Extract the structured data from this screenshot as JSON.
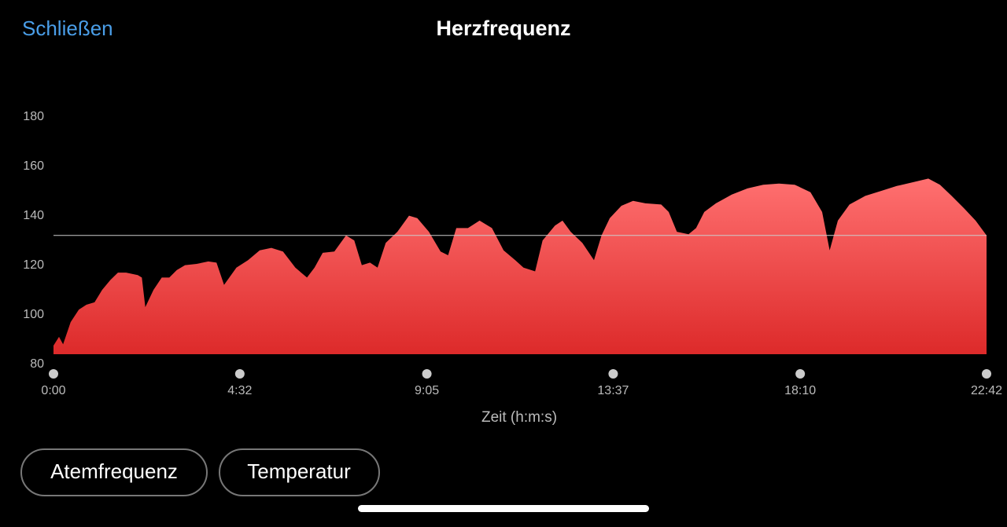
{
  "header": {
    "close": "Schließen",
    "title": "Herzfrequenz"
  },
  "chart_data": {
    "type": "area",
    "x_label": "Zeit (h:m:s)",
    "x": [
      0,
      8,
      14,
      25,
      37,
      48,
      60,
      71,
      83,
      94,
      106,
      123,
      129,
      134,
      146,
      158,
      169,
      180,
      192,
      209,
      226,
      238,
      249,
      267,
      284,
      301,
      318,
      335,
      353,
      370,
      381,
      393,
      410,
      427,
      439,
      450,
      462,
      473,
      485,
      502,
      519,
      531,
      548,
      565,
      576,
      588,
      605,
      622,
      640,
      657,
      674,
      686,
      703,
      714,
      732,
      743,
      755,
      772,
      789,
      800,
      812,
      829,
      846,
      864,
      887,
      898,
      910,
      927,
      938,
      950,
      967,
      990,
      1013,
      1036,
      1059,
      1082,
      1105,
      1122,
      1133,
      1145,
      1162,
      1185,
      1208,
      1231,
      1254,
      1277,
      1294,
      1311,
      1329,
      1346,
      1362
    ],
    "values": [
      83.5,
      87,
      84,
      93,
      98,
      100,
      101,
      106,
      110,
      113,
      113,
      112,
      111,
      99,
      106,
      111,
      111,
      114,
      116,
      116.5,
      117.5,
      117,
      108,
      115,
      118,
      122,
      123,
      121.5,
      115,
      111,
      115,
      121,
      121.5,
      128,
      126,
      116,
      117,
      115,
      125,
      129.5,
      136,
      135,
      129.5,
      121.5,
      120,
      131,
      131,
      134,
      131,
      122,
      118,
      115,
      113.5,
      126,
      132,
      134,
      129.5,
      125,
      118,
      128,
      135,
      140,
      142,
      141,
      140.5,
      137.5,
      129.5,
      128.5,
      131,
      137.5,
      141,
      144.5,
      147,
      148.5,
      149,
      148.5,
      145.5,
      137.5,
      122,
      134,
      140.5,
      144,
      146,
      148,
      149.5,
      151,
      148.5,
      144,
      139,
      134,
      128
    ],
    "xlim": [
      0,
      1362
    ],
    "xticks": [
      {
        "value": 0,
        "label": "0:00"
      },
      {
        "value": 272,
        "label": "4:32"
      },
      {
        "value": 545,
        "label": "9:05"
      },
      {
        "value": 817,
        "label": "13:37"
      },
      {
        "value": 1090,
        "label": "18:10"
      },
      {
        "value": 1362,
        "label": "22:42"
      }
    ],
    "ylim": [
      80,
      180
    ],
    "yticks": [
      80,
      100,
      120,
      140,
      160,
      180
    ],
    "reference_line": 128,
    "color": "#f35a5a"
  },
  "buttons": [
    "Atemfrequenz",
    "Temperatur"
  ]
}
